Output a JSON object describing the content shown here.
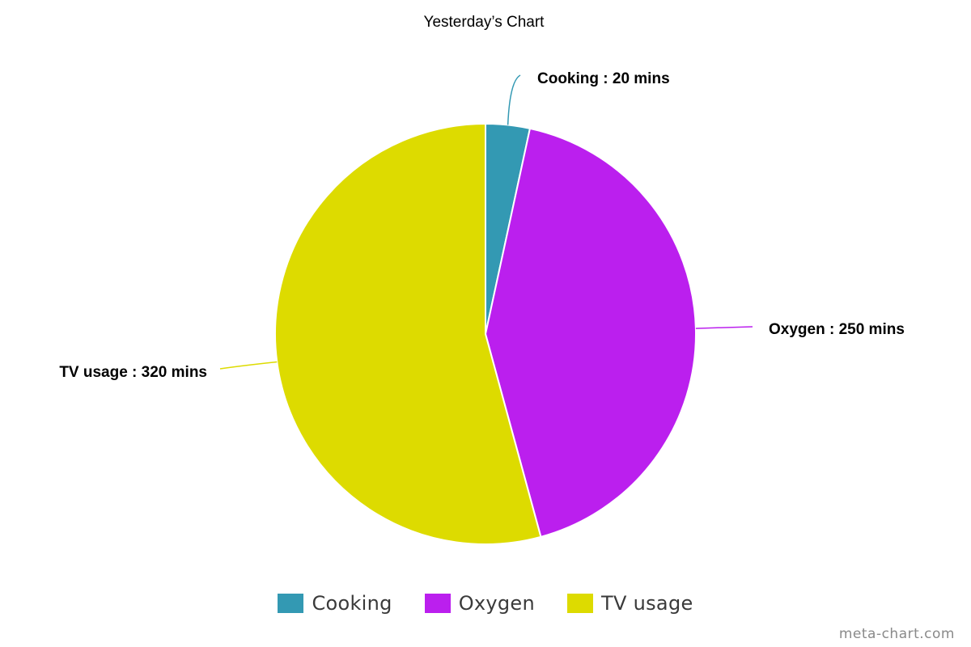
{
  "chart_data": {
    "type": "pie",
    "title": "Yesterday’s Chart",
    "unit": "mins",
    "slices": [
      {
        "label": "Cooking",
        "value": 20,
        "color": "#3399b3"
      },
      {
        "label": "Oxygen",
        "value": 250,
        "color": "#bb1fee"
      },
      {
        "label": "TV usage",
        "value": 320,
        "color": "#dddb00"
      }
    ],
    "data_labels": [
      "Cooking : 20 mins",
      "Oxygen : 250 mins",
      "TV usage : 320 mins"
    ],
    "legend_position": "bottom"
  },
  "legend": {
    "items": [
      {
        "label": "Cooking",
        "color": "#3399b3"
      },
      {
        "label": "Oxygen",
        "color": "#bb1fee"
      },
      {
        "label": "TV usage",
        "color": "#dddb00"
      }
    ]
  },
  "watermark": "meta-chart.com"
}
